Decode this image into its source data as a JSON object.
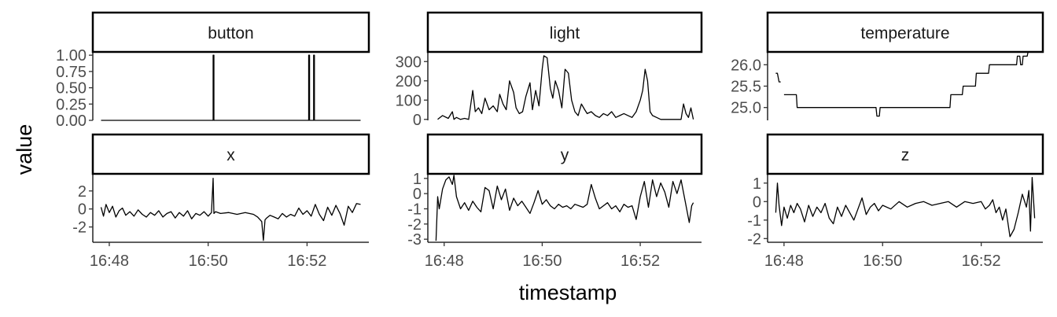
{
  "chart_data": {
    "type": "line",
    "xlabel": "timestamp",
    "ylabel": "value",
    "x_tick_labels": [
      "16:48",
      "16:50",
      "16:52"
    ],
    "x_tick_values": [
      "16:48",
      "16:50",
      "16:52"
    ],
    "xlim": [
      "16:47:40",
      "16:53:15"
    ],
    "line_color": "#000000",
    "panel_border_color": "#000000",
    "strip_fill": "#ffffff",
    "grid": false,
    "panels": [
      {
        "name": "button",
        "ylim": [
          0,
          1.05
        ],
        "yticks": [
          0,
          0.25,
          0.5,
          0.75,
          1.0
        ],
        "ytick_labels": [
          "0.00",
          "0.25",
          "0.50",
          "0.75",
          "1.00"
        ],
        "x": [
          "16:47:50",
          "16:50:06",
          "16:50:06",
          "16:50:07",
          "16:50:07",
          "16:52:02",
          "16:52:02",
          "16:52:03",
          "16:52:03",
          "16:52:08",
          "16:52:08",
          "16:52:09",
          "16:52:09",
          "16:53:05"
        ],
        "y": [
          0,
          0,
          1,
          1,
          0,
          0,
          1,
          1,
          0,
          0,
          1,
          1,
          0,
          0
        ]
      },
      {
        "name": "light",
        "ylim": [
          -5,
          350
        ],
        "yticks": [
          0,
          100,
          200,
          300
        ],
        "ytick_labels": [
          "0",
          "100",
          "200",
          "300"
        ],
        "x": [
          "16:47:52",
          "16:47:58",
          "16:48:05",
          "16:48:10",
          "16:48:12",
          "16:48:15",
          "16:48:20",
          "16:48:25",
          "16:48:30",
          "16:48:35",
          "16:48:38",
          "16:48:42",
          "16:48:46",
          "16:48:50",
          "16:48:55",
          "16:49:00",
          "16:49:05",
          "16:49:08",
          "16:49:12",
          "16:49:16",
          "16:49:20",
          "16:49:25",
          "16:49:28",
          "16:49:32",
          "16:49:36",
          "16:49:40",
          "16:49:45",
          "16:49:48",
          "16:49:52",
          "16:49:56",
          "16:50:00",
          "16:50:02",
          "16:50:06",
          "16:50:10",
          "16:50:13",
          "16:50:16",
          "16:50:20",
          "16:50:24",
          "16:50:28",
          "16:50:32",
          "16:50:36",
          "16:50:40",
          "16:50:44",
          "16:50:48",
          "16:50:52",
          "16:50:55",
          "16:51:00",
          "16:51:05",
          "16:51:10",
          "16:51:15",
          "16:51:20",
          "16:51:25",
          "16:51:30",
          "16:51:35",
          "16:51:40",
          "16:51:45",
          "16:51:50",
          "16:51:55",
          "16:52:00",
          "16:52:03",
          "16:52:06",
          "16:52:09",
          "16:52:12",
          "16:52:15",
          "16:52:20",
          "16:52:25",
          "16:52:30",
          "16:52:35",
          "16:52:40",
          "16:52:45",
          "16:52:50",
          "16:52:53",
          "16:52:56",
          "16:52:59",
          "16:53:02",
          "16:53:05"
        ],
        "y": [
          0,
          20,
          5,
          40,
          0,
          10,
          0,
          5,
          0,
          150,
          40,
          60,
          30,
          110,
          50,
          70,
          40,
          130,
          80,
          50,
          200,
          140,
          60,
          30,
          40,
          120,
          190,
          50,
          150,
          70,
          260,
          330,
          320,
          160,
          110,
          200,
          150,
          60,
          260,
          240,
          100,
          40,
          20,
          80,
          50,
          30,
          40,
          20,
          10,
          30,
          20,
          40,
          10,
          20,
          30,
          20,
          10,
          40,
          100,
          150,
          260,
          200,
          40,
          20,
          10,
          0,
          0,
          0,
          0,
          0,
          0,
          80,
          30,
          10,
          60,
          0
        ]
      },
      {
        "name": "temperature",
        "ylim": [
          24.7,
          26.3
        ],
        "yticks": [
          25.0,
          25.5,
          26.0
        ],
        "ytick_labels": [
          "25.0",
          "25.5",
          "26.0"
        ],
        "x": [
          "16:47:50",
          "16:47:52",
          "16:47:54",
          "16:47:56",
          "16:47:58",
          "16:48:00",
          "16:48:04",
          "16:48:05",
          "16:48:15",
          "16:48:16",
          "16:49:52",
          "16:49:53",
          "16:49:56",
          "16:49:57",
          "16:50:43",
          "16:50:44",
          "16:51:22",
          "16:51:23",
          "16:51:37",
          "16:51:38",
          "16:51:53",
          "16:51:54",
          "16:52:09",
          "16:52:10",
          "16:52:43",
          "16:52:44",
          "16:52:47",
          "16:52:48",
          "16:52:50",
          "16:52:51",
          "16:52:56",
          "16:52:57",
          "16:53:05"
        ],
        "y": [
          25.8,
          25.8,
          25.6,
          25.6,
          null,
          25.3,
          25.3,
          25.3,
          25.3,
          25.0,
          25.0,
          24.8,
          24.8,
          25.0,
          25.0,
          25.0,
          25.0,
          25.3,
          25.3,
          25.5,
          25.5,
          25.8,
          25.8,
          26.0,
          26.0,
          26.2,
          26.2,
          26.0,
          26.0,
          26.2,
          26.2,
          26.3,
          26.3
        ]
      },
      {
        "name": "x",
        "ylim": [
          -3.7,
          3.9
        ],
        "yticks": [
          -2,
          0,
          2
        ],
        "ytick_labels": [
          "-2",
          "0",
          "2"
        ],
        "x": [
          "16:47:50",
          "16:47:53",
          "16:47:56",
          "16:48:00",
          "16:48:04",
          "16:48:08",
          "16:48:12",
          "16:48:16",
          "16:48:20",
          "16:48:25",
          "16:48:30",
          "16:48:35",
          "16:48:40",
          "16:48:45",
          "16:48:50",
          "16:48:55",
          "16:49:00",
          "16:49:05",
          "16:49:10",
          "16:49:15",
          "16:49:20",
          "16:49:25",
          "16:49:30",
          "16:49:35",
          "16:49:40",
          "16:49:45",
          "16:49:50",
          "16:49:55",
          "16:50:00",
          "16:50:04",
          "16:50:06",
          "16:50:07",
          "16:50:09",
          "16:50:15",
          "16:50:25",
          "16:50:35",
          "16:50:45",
          "16:50:55",
          "16:51:00",
          "16:51:05",
          "16:51:07",
          "16:51:09",
          "16:51:11",
          "16:51:15",
          "16:51:20",
          "16:51:25",
          "16:51:30",
          "16:51:35",
          "16:51:40",
          "16:51:45",
          "16:51:50",
          "16:51:55",
          "16:52:00",
          "16:52:05",
          "16:52:10",
          "16:52:15",
          "16:52:20",
          "16:52:25",
          "16:52:30",
          "16:52:35",
          "16:52:40",
          "16:52:45",
          "16:52:50",
          "16:52:55",
          "16:53:00",
          "16:53:05"
        ],
        "y": [
          0.2,
          -0.8,
          0.5,
          -0.4,
          0.3,
          -0.9,
          -0.2,
          0.1,
          -0.7,
          -0.3,
          -0.8,
          -0.1,
          -0.6,
          -0.9,
          -0.4,
          -0.7,
          -0.2,
          -0.9,
          -0.5,
          -0.3,
          -1.0,
          -0.4,
          -0.8,
          -0.2,
          -1.1,
          -0.5,
          -0.7,
          -0.3,
          -0.8,
          -0.4,
          3.4,
          -0.5,
          -0.3,
          -0.5,
          -0.4,
          -0.6,
          -0.4,
          -0.6,
          -0.9,
          -1.4,
          -3.5,
          -1.2,
          -1.0,
          -0.7,
          -0.9,
          -1.1,
          -0.5,
          -0.9,
          -0.6,
          -0.8,
          0.1,
          -0.6,
          -0.2,
          -0.8,
          0.5,
          -0.6,
          -1.3,
          0.2,
          -0.7,
          0.4,
          -0.5,
          -1.8,
          0.3,
          -0.4,
          0.6,
          0.5
        ]
      },
      {
        "name": "y",
        "ylim": [
          -3.2,
          1.3
        ],
        "yticks": [
          -3,
          -2,
          -1,
          0,
          1
        ],
        "ytick_labels": [
          "-3",
          "-2",
          "-1",
          "0",
          "1"
        ],
        "x": [
          "16:47:50",
          "16:47:52",
          "16:47:54",
          "16:47:58",
          "16:48:02",
          "16:48:06",
          "16:48:10",
          "16:48:12",
          "16:48:15",
          "16:48:20",
          "16:48:25",
          "16:48:30",
          "16:48:35",
          "16:48:40",
          "16:48:45",
          "16:48:50",
          "16:48:55",
          "16:49:00",
          "16:49:05",
          "16:49:10",
          "16:49:15",
          "16:49:20",
          "16:49:25",
          "16:49:30",
          "16:49:35",
          "16:49:40",
          "16:49:45",
          "16:49:50",
          "16:49:55",
          "16:50:00",
          "16:50:05",
          "16:50:10",
          "16:50:15",
          "16:50:20",
          "16:50:25",
          "16:50:30",
          "16:50:35",
          "16:50:40",
          "16:50:45",
          "16:50:50",
          "16:50:55",
          "16:51:00",
          "16:51:05",
          "16:51:10",
          "16:51:15",
          "16:51:20",
          "16:51:25",
          "16:51:30",
          "16:51:35",
          "16:51:40",
          "16:51:45",
          "16:51:50",
          "16:51:55",
          "16:52:00",
          "16:52:05",
          "16:52:10",
          "16:52:15",
          "16:52:20",
          "16:52:25",
          "16:52:30",
          "16:52:35",
          "16:52:40",
          "16:52:45",
          "16:52:50",
          "16:52:55",
          "16:53:00",
          "16:53:03",
          "16:53:05"
        ],
        "y": [
          -3.1,
          -0.2,
          -1.0,
          0.3,
          0.9,
          1.1,
          0.6,
          1.2,
          -0.2,
          -1.0,
          -0.6,
          -1.1,
          -0.5,
          -0.9,
          -1.2,
          0.4,
          0.2,
          -1.0,
          0.5,
          -0.4,
          0.3,
          -1.1,
          -0.3,
          -0.8,
          -0.5,
          -0.9,
          -1.3,
          -0.6,
          0.2,
          -0.7,
          -0.4,
          -0.8,
          -1.0,
          -0.7,
          -0.9,
          -0.8,
          -1.0,
          -0.7,
          -0.8,
          -0.9,
          -0.7,
          0.6,
          -0.3,
          -1.0,
          -0.8,
          -0.6,
          -1.0,
          -0.8,
          -1.2,
          -0.7,
          -0.9,
          -0.8,
          -1.7,
          -0.2,
          0.8,
          -0.9,
          0.9,
          -0.2,
          0.7,
          0.1,
          -0.9,
          0.8,
          0.0,
          0.9,
          -0.5,
          -1.9,
          -0.8,
          -0.6
        ]
      },
      {
        "name": "z",
        "ylim": [
          -2.2,
          1.5
        ],
        "yticks": [
          -2,
          -1,
          0,
          1
        ],
        "ytick_labels": [
          "-2",
          "-1",
          "0",
          "1"
        ],
        "x": [
          "16:47:50",
          "16:47:52",
          "16:47:54",
          "16:47:57",
          "16:48:00",
          "16:48:04",
          "16:48:08",
          "16:48:12",
          "16:48:16",
          "16:48:20",
          "16:48:25",
          "16:48:30",
          "16:48:35",
          "16:48:40",
          "16:48:45",
          "16:48:50",
          "16:48:55",
          "16:49:00",
          "16:49:05",
          "16:49:10",
          "16:49:15",
          "16:49:20",
          "16:49:25",
          "16:49:30",
          "16:49:35",
          "16:49:40",
          "16:49:45",
          "16:49:50",
          "16:49:55",
          "16:50:00",
          "16:50:10",
          "16:50:20",
          "16:50:30",
          "16:50:40",
          "16:50:50",
          "16:51:00",
          "16:51:10",
          "16:51:20",
          "16:51:30",
          "16:51:40",
          "16:51:50",
          "16:52:00",
          "16:52:05",
          "16:52:10",
          "16:52:14",
          "16:52:18",
          "16:52:22",
          "16:52:26",
          "16:52:30",
          "16:52:35",
          "16:52:40",
          "16:52:45",
          "16:52:50",
          "16:52:55",
          "16:52:58",
          "16:53:00",
          "16:53:02",
          "16:53:05"
        ],
        "y": [
          -0.6,
          1.0,
          -0.2,
          -1.3,
          -0.3,
          -0.9,
          -0.2,
          -0.6,
          -0.1,
          -0.4,
          -1.1,
          -0.2,
          -0.8,
          -0.3,
          -0.6,
          -0.1,
          -0.9,
          -1.2,
          -0.3,
          -0.8,
          -0.2,
          -0.6,
          -1.0,
          -0.4,
          0.2,
          -0.7,
          -0.3,
          -0.1,
          -0.5,
          -0.2,
          -0.4,
          0.0,
          -0.3,
          -0.1,
          0.0,
          -0.2,
          -0.1,
          0.0,
          -0.3,
          0.0,
          -0.1,
          0.0,
          -0.4,
          -0.2,
          0.1,
          -0.6,
          -0.3,
          -1.0,
          -0.4,
          -1.9,
          -1.5,
          -0.6,
          0.4,
          -0.3,
          0.6,
          -1.6,
          1.3,
          -0.9
        ]
      }
    ]
  }
}
